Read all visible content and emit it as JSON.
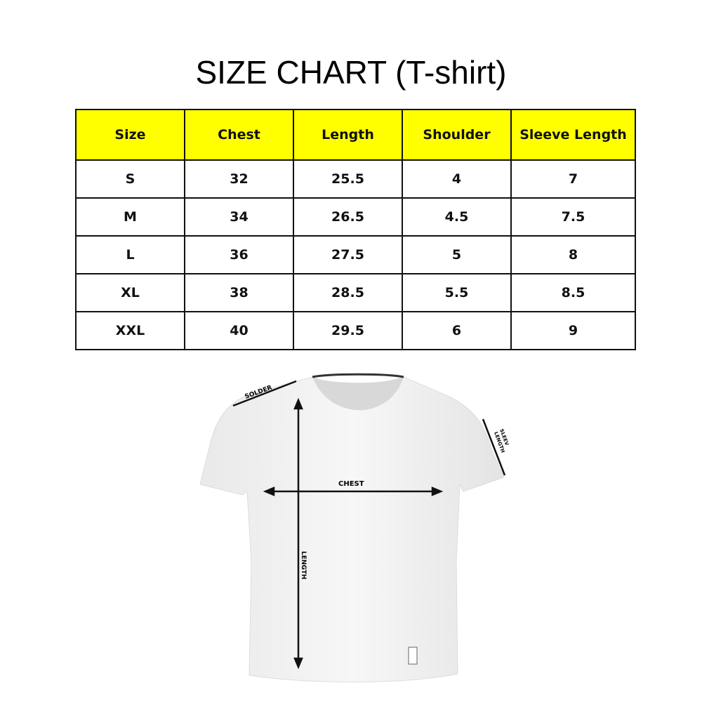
{
  "title": "SIZE CHART (T-shirt)",
  "table": {
    "headers": [
      "Size",
      "Chest",
      "Length",
      "Shoulder",
      "Sleeve Length"
    ],
    "rows": [
      [
        "S",
        "32",
        "25.5",
        "4",
        "7"
      ],
      [
        "M",
        "34",
        "26.5",
        "4.5",
        "7.5"
      ],
      [
        "L",
        "36",
        "27.5",
        "5",
        "8"
      ],
      [
        "XL",
        "38",
        "28.5",
        "5.5",
        "8.5"
      ],
      [
        "XXL",
        "40",
        "29.5",
        "6",
        "9"
      ]
    ],
    "header_color": "#ffff00"
  },
  "diagram": {
    "labels": {
      "shoulder": "SOLDER",
      "chest": "CHEST",
      "length": "LENGTH",
      "sleeve": [
        "SLEEV",
        "LENGTH"
      ]
    }
  }
}
